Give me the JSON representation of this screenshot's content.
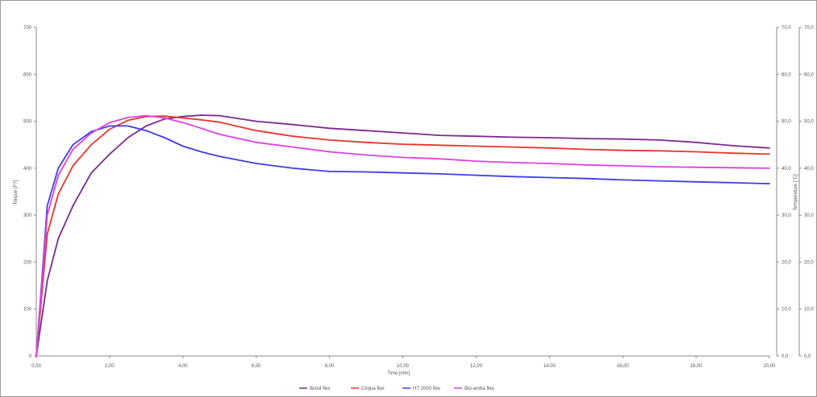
{
  "chart_data": {
    "type": "line",
    "xlabel": "Time [min]",
    "ylabel": "Torque [F?]",
    "y2label": "Temperature [°C]",
    "xlim": [
      0,
      20
    ],
    "ylim": [
      0,
      700
    ],
    "y2lim": [
      0,
      70
    ],
    "y3lim": [
      0,
      70
    ],
    "x_ticks": [
      "0,00",
      "2,00",
      "4,00",
      "6,00",
      "8,00",
      "10,00",
      "12,00",
      "14,00",
      "16,00",
      "18,00",
      "20,00"
    ],
    "y_ticks": [
      "0",
      "100",
      "200",
      "300",
      "400",
      "500",
      "600",
      "700"
    ],
    "y2_ticks": [
      "0,0",
      "10,0",
      "20,0",
      "30,0",
      "40,0",
      "50,0",
      "60,0",
      "70,0"
    ],
    "y3_ticks": [
      "0,0",
      "10,0",
      "20,0",
      "30,0",
      "40,0",
      "50,0",
      "60,0",
      "70,0"
    ],
    "grid": false,
    "legend_position": "bottom-center",
    "series": [
      {
        "name": "Bulsil flex",
        "color": "#7b2a8c",
        "x": [
          0,
          0.3,
          0.6,
          1.0,
          1.5,
          2.0,
          2.5,
          3.0,
          3.5,
          4.0,
          4.5,
          5.0,
          6.0,
          7.0,
          8.0,
          9.0,
          10.0,
          11.0,
          12.0,
          13.0,
          14.0,
          15.0,
          16.0,
          17.0,
          18.0,
          19.0,
          20.0
        ],
        "values": [
          0,
          160,
          250,
          320,
          390,
          430,
          465,
          490,
          505,
          510,
          513,
          512,
          500,
          493,
          485,
          480,
          475,
          470,
          468,
          466,
          465,
          463,
          462,
          460,
          455,
          448,
          443
        ]
      },
      {
        "name": "Cirqua flex",
        "color": "#e8352b",
        "x": [
          0,
          0.3,
          0.6,
          1.0,
          1.5,
          2.0,
          2.5,
          3.0,
          3.5,
          4.0,
          4.5,
          5.0,
          6.0,
          7.0,
          8.0,
          9.0,
          10.0,
          11.0,
          12.0,
          13.0,
          14.0,
          15.0,
          16.0,
          17.0,
          18.0,
          19.0,
          20.0
        ],
        "values": [
          0,
          260,
          345,
          405,
          450,
          483,
          502,
          510,
          511,
          507,
          503,
          498,
          480,
          468,
          460,
          455,
          451,
          449,
          447,
          445,
          443,
          440,
          438,
          437,
          435,
          432,
          430
        ]
      },
      {
        "name": "HT 2000 flex",
        "color": "#3c3ce6",
        "x": [
          0,
          0.3,
          0.6,
          1.0,
          1.5,
          2.0,
          2.5,
          3.0,
          3.5,
          4.0,
          4.5,
          5.0,
          6.0,
          7.0,
          8.0,
          9.0,
          10.0,
          11.0,
          12.0,
          13.0,
          14.0,
          15.0,
          16.0,
          17.0,
          18.0,
          19.0,
          20.0
        ],
        "values": [
          0,
          320,
          400,
          450,
          478,
          490,
          490,
          480,
          465,
          447,
          435,
          425,
          410,
          400,
          393,
          392,
          390,
          388,
          385,
          382,
          380,
          378,
          375,
          373,
          371,
          369,
          367
        ]
      },
      {
        "name": "Bio-amba flex",
        "color": "#e040e0",
        "x": [
          0,
          0.3,
          0.6,
          1.0,
          1.5,
          2.0,
          2.5,
          3.0,
          3.5,
          4.0,
          4.5,
          5.0,
          6.0,
          7.0,
          8.0,
          9.0,
          10.0,
          11.0,
          12.0,
          13.0,
          14.0,
          15.0,
          16.0,
          17.0,
          18.0,
          19.0,
          20.0
        ],
        "values": [
          0,
          300,
          385,
          440,
          475,
          497,
          508,
          512,
          507,
          497,
          485,
          472,
          455,
          445,
          435,
          428,
          423,
          420,
          415,
          412,
          410,
          407,
          405,
          403,
          402,
          401,
          400
        ]
      }
    ]
  }
}
